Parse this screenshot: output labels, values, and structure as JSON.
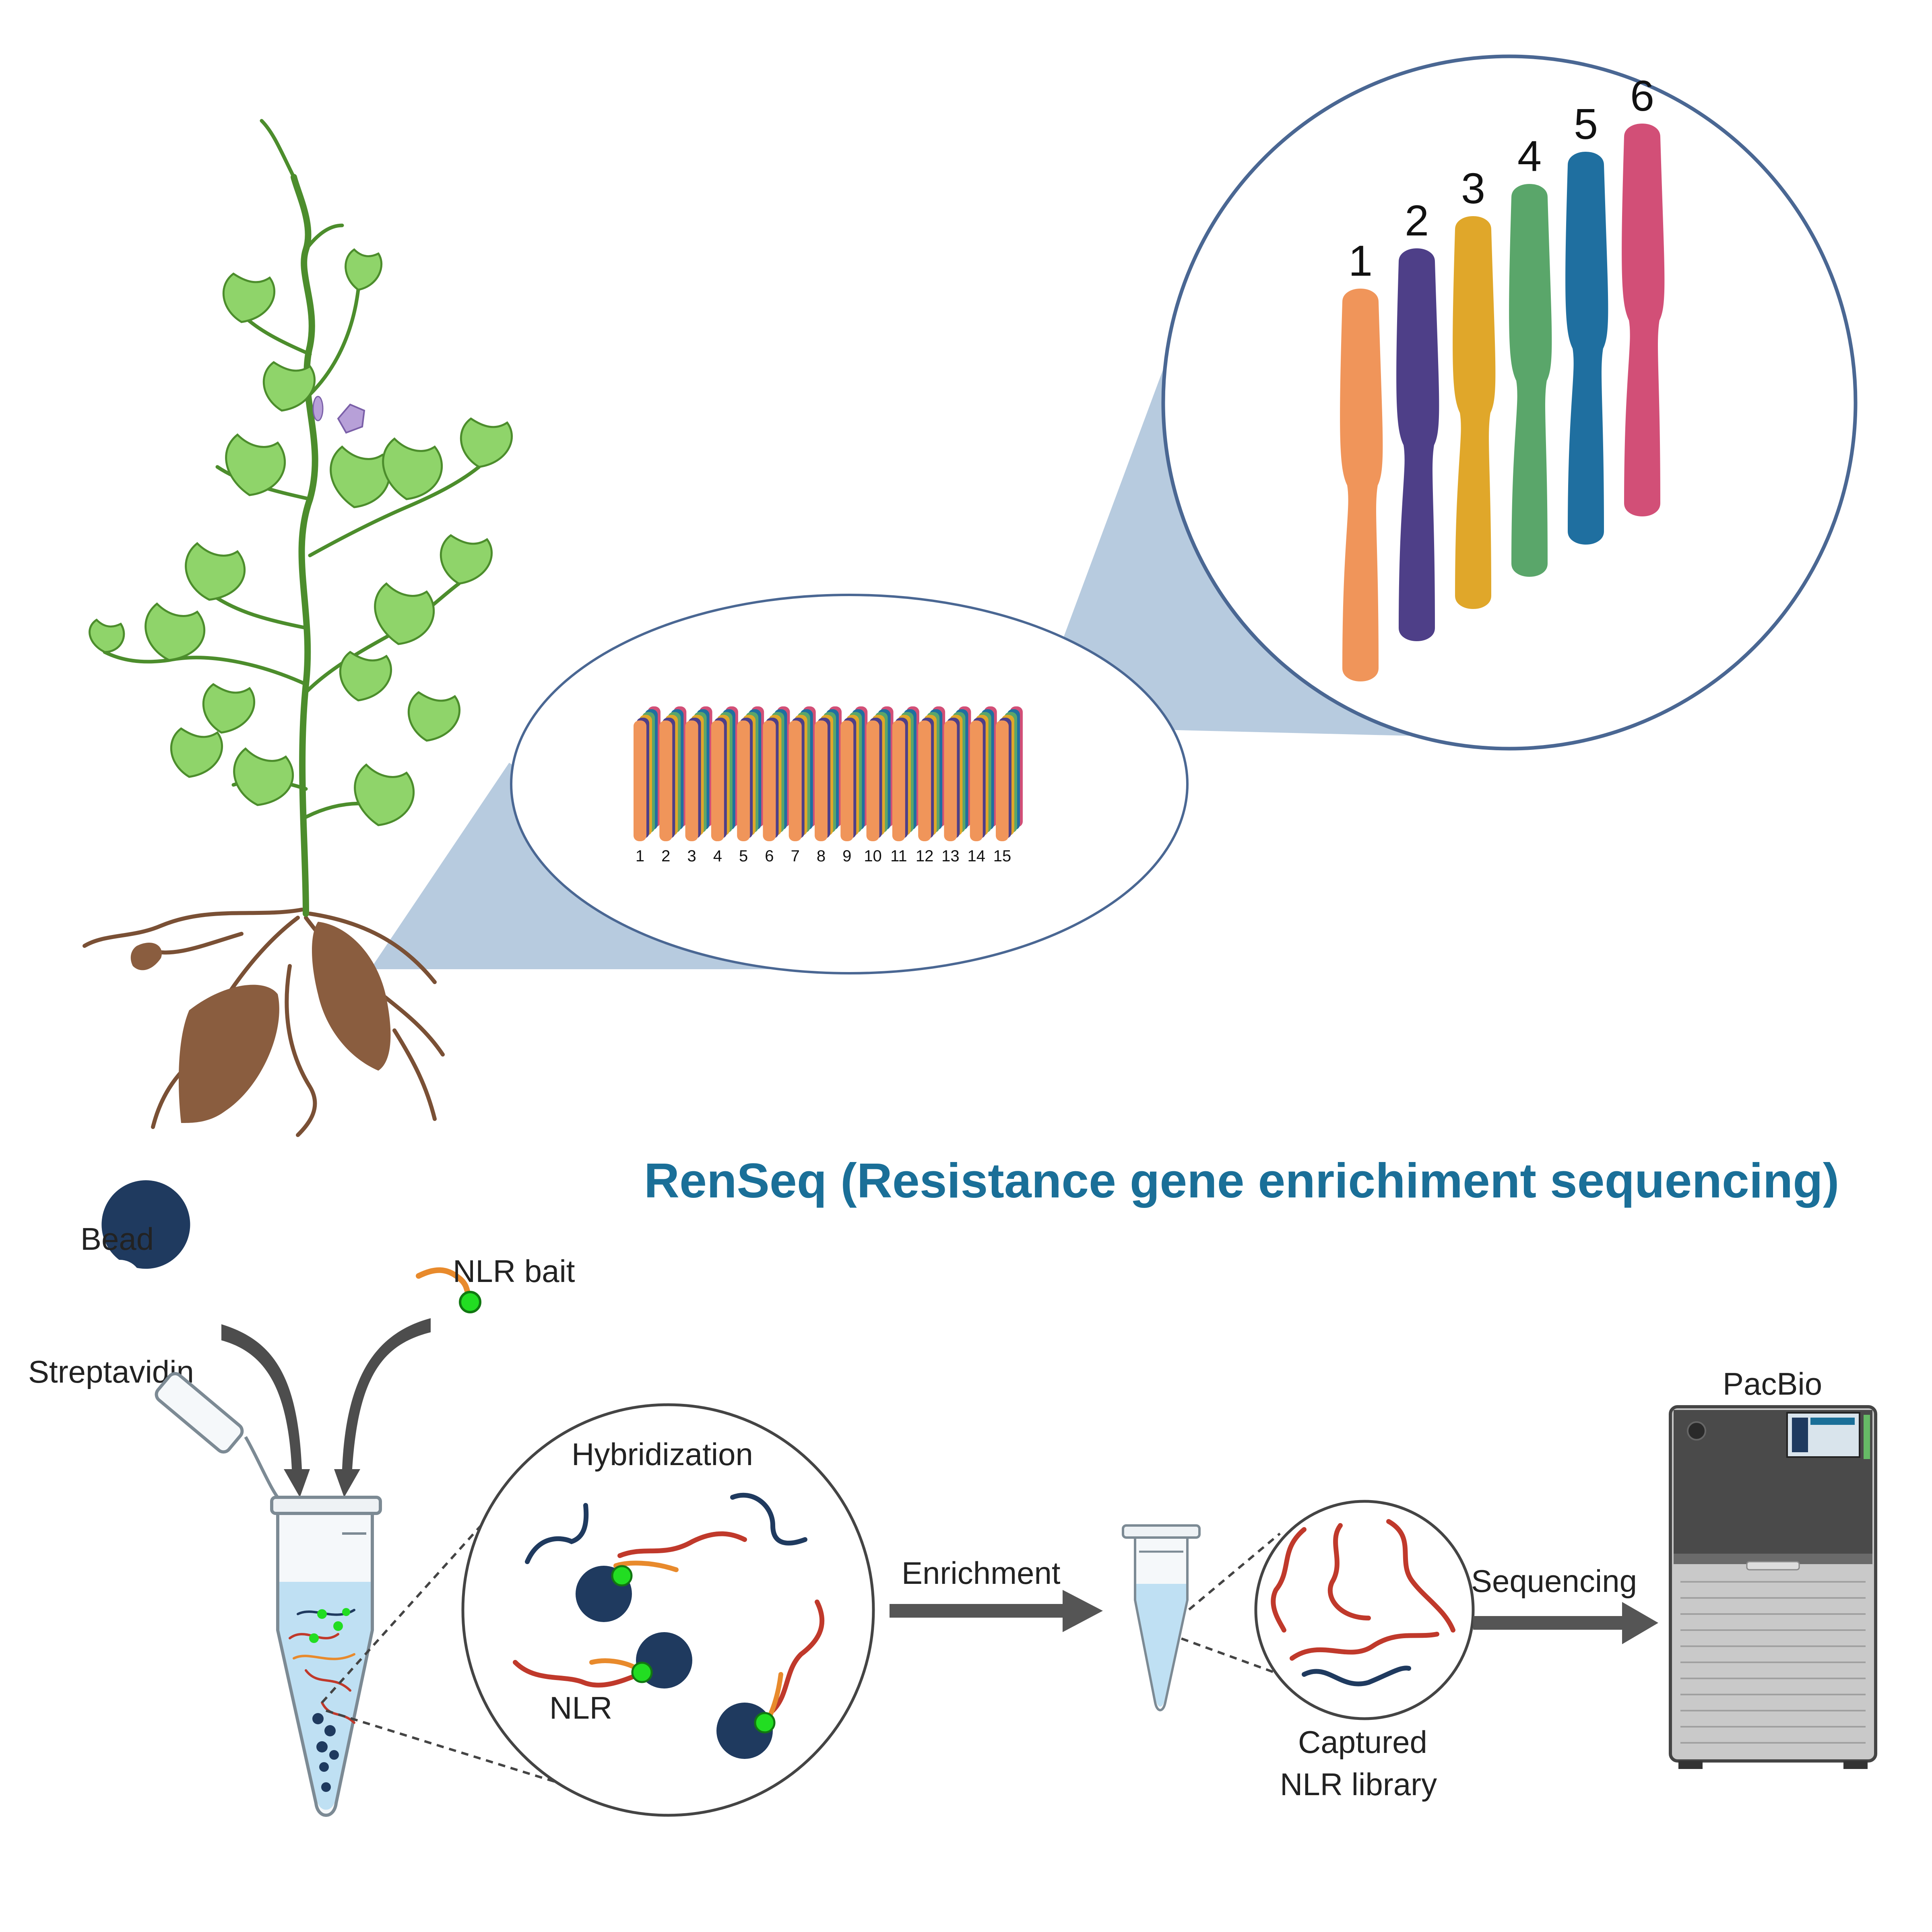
{
  "title": "RenSeq (Resistance gene enrichiment sequencing)",
  "colors": {
    "title": "#1a6f98",
    "bead": "#1f3a5f",
    "bait_green": "#22dd22",
    "bait_orange": "#e88a2c",
    "nlr_red": "#c0392b",
    "zoom_fill": "#b7cbdf",
    "circle_stroke": "#4a6793"
  },
  "chromosome_panel": {
    "small_labels": [
      "1",
      "2",
      "3",
      "4",
      "5",
      "6",
      "7",
      "8",
      "9",
      "10",
      "11",
      "12",
      "13",
      "14",
      "15"
    ],
    "big_labels": [
      "1",
      "2",
      "3",
      "4",
      "5",
      "6"
    ],
    "chromosome_colors": [
      "#f0955a",
      "#4e3f88",
      "#e0a72a",
      "#5aa66a",
      "#1f6fa0",
      "#d24f77"
    ]
  },
  "labels": {
    "bead": "Bead",
    "streptavidin": "Streptavidin",
    "nlr_bait": "NLR bait",
    "hybridization": "Hybridization",
    "nlr": "NLR",
    "enrichment": "Enrichment",
    "captured_line1": "Captured",
    "captured_line2": "NLR library",
    "sequencing": "Sequencing",
    "pacbio": "PacBio"
  }
}
